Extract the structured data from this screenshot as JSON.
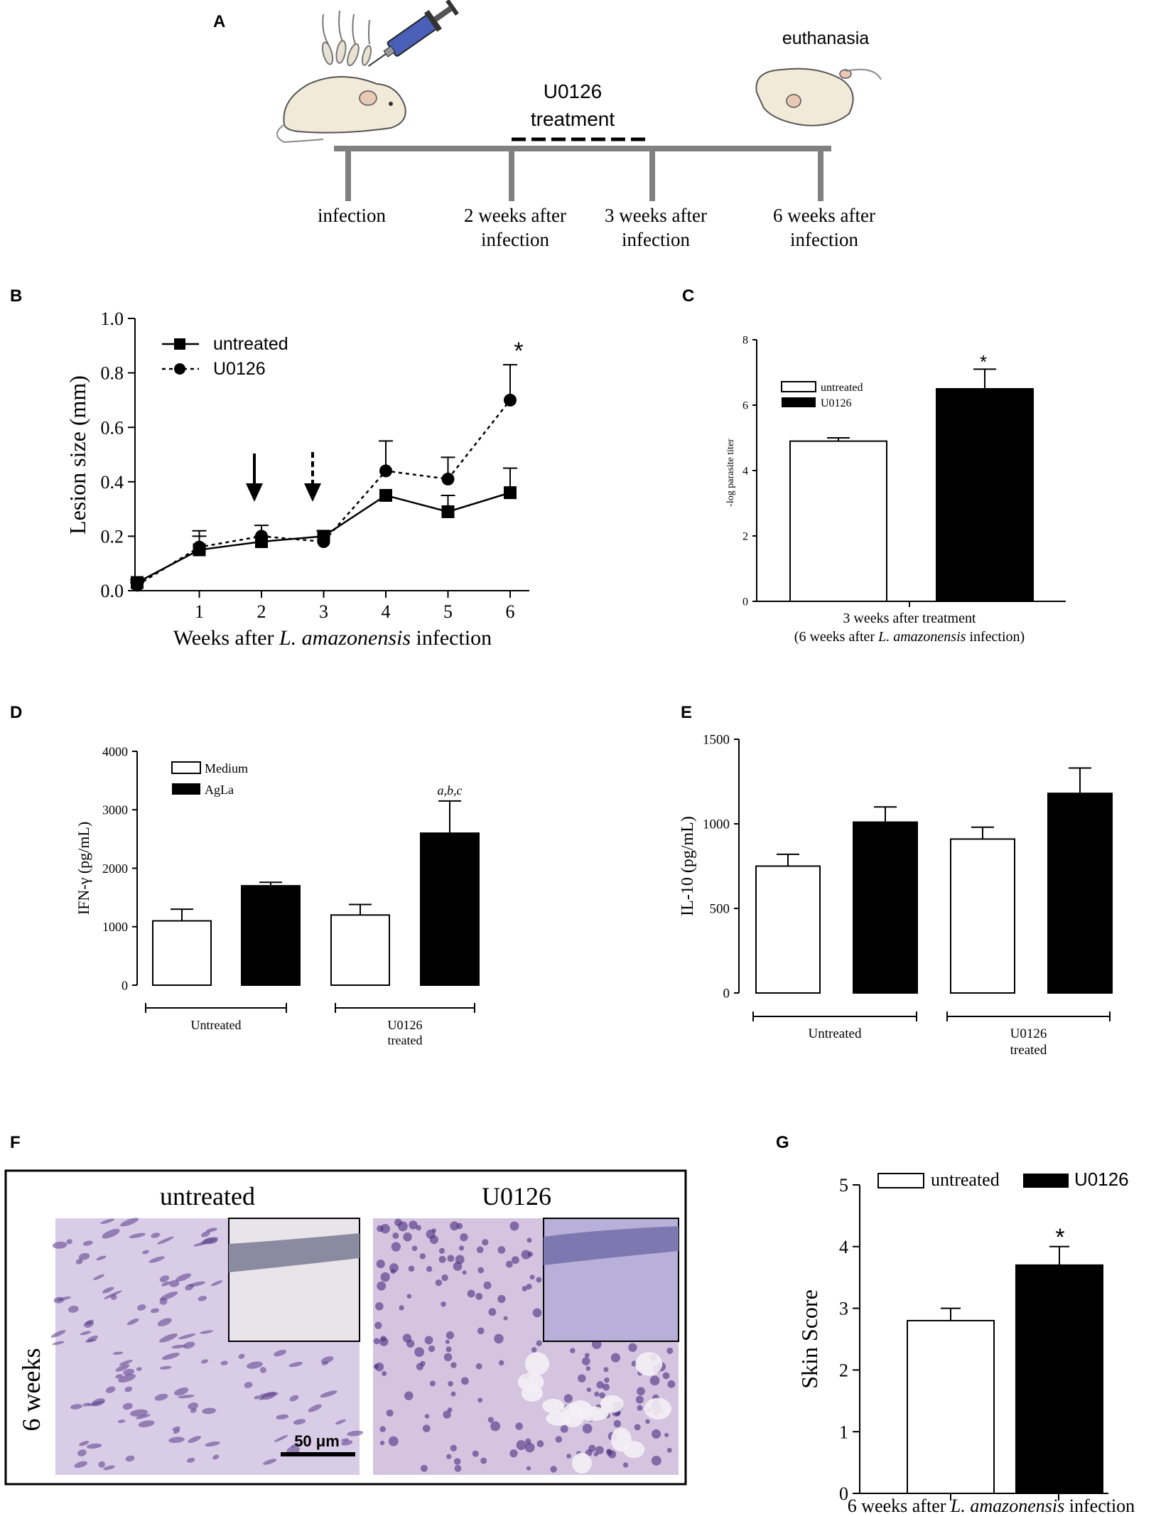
{
  "panel_letters": {
    "a": "A",
    "b": "B",
    "c": "C",
    "d": "D",
    "e": "E",
    "f": "F",
    "g": "G"
  },
  "timeline": {
    "title": "euthanasia",
    "treatment_line1": "U0126",
    "treatment_line2": "treatment",
    "labels": [
      {
        "l1": "infection",
        "l2": ""
      },
      {
        "l1": "2 weeks after",
        "l2": "infection"
      },
      {
        "l1": "3 weeks after",
        "l2": "infection"
      },
      {
        "l1": "6 weeks after",
        "l2": "infection"
      }
    ]
  },
  "chart_data": [
    {
      "panel": "B",
      "type": "line",
      "xlabel_pre": "Weeks after ",
      "xlabel_italic": "L. amazonensis",
      "xlabel_post": " infection",
      "ylabel": "Lesion size (mm)",
      "ylim": [
        0,
        1.0
      ],
      "yticks": [
        "0.0",
        "0.2",
        "0.4",
        "0.6",
        "0.8",
        "1.0"
      ],
      "xticks": [
        "1",
        "2",
        "3",
        "4",
        "5",
        "6"
      ],
      "series": [
        {
          "name": "untreated",
          "x": [
            0,
            1,
            2,
            3,
            4,
            5,
            6
          ],
          "y": [
            0.03,
            0.15,
            0.18,
            0.2,
            0.35,
            0.29,
            0.36
          ],
          "err": [
            0.01,
            0.05,
            0.02,
            0.02,
            0.0,
            0.06,
            0.09
          ]
        },
        {
          "name": "U0126",
          "x": [
            0,
            1,
            2,
            3,
            4,
            5,
            6
          ],
          "y": [
            0.02,
            0.16,
            0.2,
            0.18,
            0.44,
            0.41,
            0.7
          ],
          "err": [
            0.01,
            0.06,
            0.04,
            0.04,
            0.11,
            0.08,
            0.13
          ]
        }
      ],
      "annotations": [
        "*"
      ]
    },
    {
      "panel": "C",
      "type": "bar",
      "ylabel": "-log parasite titer",
      "ylim": [
        0,
        8
      ],
      "yticks": [
        "0",
        "2",
        "4",
        "6",
        "8"
      ],
      "xlabel_line1": "3 weeks after treatment",
      "xlabel_pre": "(6 weeks after ",
      "xlabel_italic": "L. amazonensis",
      "xlabel_post": " infection)",
      "series": [
        {
          "name": "untreated",
          "values": [
            4.9
          ],
          "err": [
            0.1
          ]
        },
        {
          "name": "U0126",
          "values": [
            6.5
          ],
          "err": [
            0.6
          ]
        }
      ],
      "annotations": [
        "*"
      ]
    },
    {
      "panel": "D",
      "type": "bar",
      "ylabel": "IFN-γ (pg/mL)",
      "ylim": [
        0,
        4000
      ],
      "yticks": [
        "0",
        "1000",
        "2000",
        "3000",
        "4000"
      ],
      "categories": [
        {
          "l1": "Untreated",
          "l2": ""
        },
        {
          "l1": "U0126",
          "l2": "treated"
        }
      ],
      "series": [
        {
          "name": "Medium",
          "values": [
            1100,
            1200
          ],
          "err": [
            200,
            180
          ]
        },
        {
          "name": "AgLa",
          "values": [
            1700,
            2600
          ],
          "err": [
            60,
            550
          ]
        }
      ],
      "annotations": [
        "a,b,c"
      ]
    },
    {
      "panel": "E",
      "type": "bar",
      "ylabel": "IL-10 (pg/mL)",
      "ylim": [
        0,
        1500
      ],
      "yticks": [
        "0",
        "500",
        "1000",
        "1500"
      ],
      "categories": [
        {
          "l1": "Untreated",
          "l2": ""
        },
        {
          "l1": "U0126",
          "l2": "treated"
        }
      ],
      "series": [
        {
          "name": "Medium",
          "values": [
            750,
            910
          ],
          "err": [
            70,
            70
          ]
        },
        {
          "name": "AgLa",
          "values": [
            1010,
            1180
          ],
          "err": [
            90,
            150
          ]
        }
      ]
    },
    {
      "panel": "G",
      "type": "bar",
      "ylabel": "Skin Score",
      "ylim": [
        0,
        5
      ],
      "yticks": [
        "0",
        "1",
        "2",
        "3",
        "4",
        "5"
      ],
      "xlabel_pre": "6 weeks after  ",
      "xlabel_italic": "L. amazonensis",
      "xlabel_post": " infection",
      "series": [
        {
          "name": "untreated",
          "values": [
            2.8
          ],
          "err": [
            0.2
          ]
        },
        {
          "name": "U0126",
          "values": [
            3.7
          ],
          "err": [
            0.3
          ]
        }
      ],
      "annotations": [
        "*"
      ]
    }
  ],
  "histology": {
    "left_title": "untreated",
    "right_title": "U0126",
    "row_label": "6 weeks",
    "scale_bar": "50 μm"
  },
  "colors": {
    "ink": "#000000",
    "timeline": "#808080",
    "tissue_bg": "#d9cce6",
    "tissue_cell": "#5a3d8a",
    "fur": "#f2ead8",
    "syringe": "#4a60b8"
  }
}
